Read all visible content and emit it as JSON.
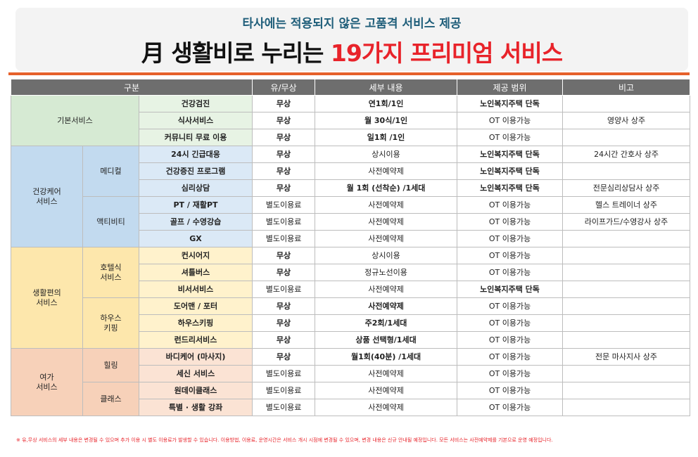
{
  "header": {
    "subtitle": "타사에는 적용되지 않은 고품격 서비스 제공",
    "title_main": "月 생활비로 누리는",
    "title_accent": "19가지 프리미엄 서비스"
  },
  "colors": {
    "free": "#e8232a",
    "accent_line": "#e6612b",
    "header_bg": "#6e6e6e",
    "basic": "#d6ead3",
    "health": "#c2daef",
    "life": "#fde7ac",
    "leisure": "#f7d1b9"
  },
  "table": {
    "headers": {
      "category": "구분",
      "fee": "유/무상",
      "detail": "세부 내용",
      "scope": "제공 범위",
      "note": "비고"
    },
    "groups": {
      "basic": "기본서비스",
      "health": "건강케어\n서비스",
      "life": "생활편의\n서비스",
      "leisure": "여가\n서비스"
    },
    "subgroups": {
      "medical": "메디컬",
      "active": "액티비티",
      "hotel": "호텔식\n서비스",
      "housekeep": "하우스\n키핑",
      "healing": "힐링",
      "class": "클래스"
    },
    "rows": [
      {
        "item": "건강검진",
        "fee": "무상",
        "detail": "연1회/1인",
        "scope": "노인복지주택 단독",
        "note": ""
      },
      {
        "item": "식사서비스",
        "fee": "무상",
        "detail": "월 30식/1인",
        "scope": "OT 이용가능",
        "note": "영양사 상주"
      },
      {
        "item": "커뮤니티 무료 이용",
        "fee": "무상",
        "detail": "일1회 /1인",
        "scope": "OT 이용가능",
        "note": ""
      },
      {
        "item": "24시 긴급대응",
        "fee": "무상",
        "detail": "상시이용",
        "scope": "노인복지주택 단독",
        "note": "24시간 간호사 상주"
      },
      {
        "item": "건강증진 프로그램",
        "fee": "무상",
        "detail": "사전예약제",
        "scope": "노인복지주택 단독",
        "note": ""
      },
      {
        "item": "심리상담",
        "fee": "무상",
        "detail": "월 1회 (선착순) /1세대",
        "scope": "노인복지주택 단독",
        "note": "전문심리상담사 상주"
      },
      {
        "item": "PT / 재활PT",
        "fee": "별도이용료",
        "detail": "사전예약제",
        "scope": "OT 이용가능",
        "note": "헬스 트레이너 상주"
      },
      {
        "item": "골프 / 수영강습",
        "fee": "별도이용료",
        "detail": "사전예약제",
        "scope": "OT 이용가능",
        "note": "라이프가드/수영강사 상주"
      },
      {
        "item": "GX",
        "fee": "별도이용료",
        "detail": "사전예약제",
        "scope": "OT 이용가능",
        "note": ""
      },
      {
        "item": "컨시어지",
        "fee": "무상",
        "detail": "상시이용",
        "scope": "OT 이용가능",
        "note": ""
      },
      {
        "item": "셔틀버스",
        "fee": "무상",
        "detail": "정규노선이용",
        "scope": "OT 이용가능",
        "note": ""
      },
      {
        "item": "비서서비스",
        "fee": "별도이용료",
        "detail": "사전예약제",
        "scope": "노인복지주택 단독",
        "note": ""
      },
      {
        "item": "도어맨 / 포터",
        "fee": "무상",
        "detail": "사전예약제",
        "scope": "OT 이용가능",
        "note": ""
      },
      {
        "item": "하우스키핑",
        "fee": "무상",
        "detail": "주2회/1세대",
        "scope": "OT 이용가능",
        "note": ""
      },
      {
        "item": "런드리서비스",
        "fee": "무상",
        "detail": "상품 선택형/1세대",
        "scope": "OT 이용가능",
        "note": ""
      },
      {
        "item": "바디케어 (마사지)",
        "fee": "무상",
        "detail": "월1회(40분) /1세대",
        "scope": "OT 이용가능",
        "note": "전문 마사지사 상주"
      },
      {
        "item": "세신 서비스",
        "fee": "별도이용료",
        "detail": "사전예약제",
        "scope": "OT 이용가능",
        "note": ""
      },
      {
        "item": "원데이클래스",
        "fee": "별도이용료",
        "detail": "사전예약제",
        "scope": "OT 이용가능",
        "note": ""
      },
      {
        "item": "특별 · 생활 강좌",
        "fee": "별도이용료",
        "detail": "사전예약제",
        "scope": "OT 이용가능",
        "note": ""
      }
    ]
  },
  "footnote": "※ 유,무상 서비스의 세부 내용은 변경될 수 있으며 추가 이용 시 별도 이용료가 발생할 수 있습니다. 이용방법, 이용료, 운영시간은 서비스 개시 시점에 변경될 수 있으며, 변경 내용은 신규 안내될 예정입니다. 모든 서비스는 사전예약제를 기본으로 운영 예정입니다."
}
